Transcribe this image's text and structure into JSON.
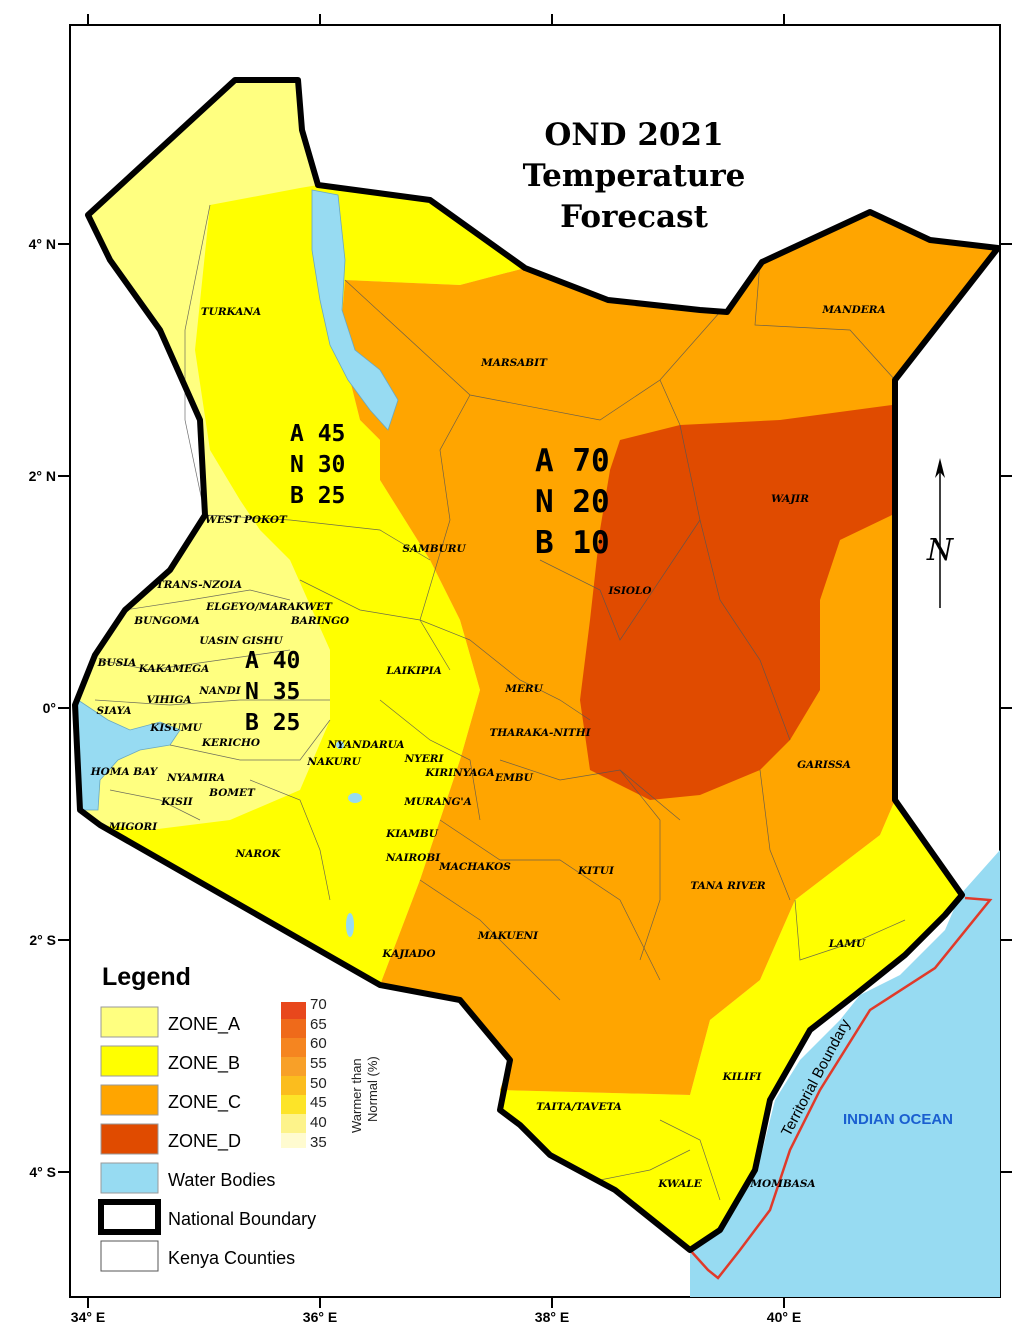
{
  "title": {
    "line1": "OND 2021",
    "line2": "Temperature",
    "line3": "Forecast"
  },
  "axes": {
    "x_ticks": [
      "34° E",
      "36° E",
      "38° E",
      "40° E"
    ],
    "y_ticks": [
      "4° N",
      "2° N",
      "0°",
      "2° S",
      "4° S"
    ]
  },
  "zone_stats": [
    {
      "a": "A 45",
      "n": "N 30",
      "b": "B 25"
    },
    {
      "a": "A 70",
      "n": "N 20",
      "b": "B 10"
    },
    {
      "a": "A 40",
      "n": "N 35",
      "b": "B 25"
    }
  ],
  "counties": [
    "TURKANA",
    "MARSABIT",
    "MANDERA",
    "WAJIR",
    "WEST POKOT",
    "SAMBURU",
    "ISIOLO",
    "TRANS-NZOIA",
    "ELGEYO/MARAKWET",
    "BUNGOMA",
    "BARINGO",
    "UASIN GISHU",
    "BUSIA",
    "KAKAMEGA",
    "LAIKIPIA",
    "NANDI",
    "VIHIGA",
    "MERU",
    "SIAYA",
    "KISUMU",
    "THARAKA-NITHI",
    "KERICHO",
    "NYANDARUA",
    "NYERI",
    "GARISSA",
    "HOMA BAY",
    "NAKURU",
    "KIRINYAGA",
    "EMBU",
    "NYAMIRA",
    "BOMET",
    "KISII",
    "MURANG'A",
    "MIGORI",
    "KIAMBU",
    "NAROK",
    "NAIROBI",
    "MACHAKOS",
    "KITUI",
    "TANA RIVER",
    "MAKUENI",
    "LAMU",
    "KAJIADO",
    "KILIFI",
    "TAITA/TAVETA",
    "KWALE",
    "MOMBASA"
  ],
  "legend": {
    "title": "Legend",
    "items": [
      {
        "label": "ZONE_A",
        "color": "#ffff80"
      },
      {
        "label": "ZONE_B",
        "color": "#ffff00"
      },
      {
        "label": "ZONE_C",
        "color": "#ffa500"
      },
      {
        "label": "ZONE_D",
        "color": "#e04b00"
      },
      {
        "label": "Water Bodies",
        "color": "#97dbf2"
      },
      {
        "label": "National Boundary",
        "color": "#000000"
      },
      {
        "label": "Kenya Counties",
        "color": "#ffffff"
      }
    ]
  },
  "scale": {
    "title_line1": "Warmer than",
    "title_line2": "Normal (%)",
    "labels": [
      "70",
      "65",
      "60",
      "55",
      "50",
      "45",
      "40",
      "35"
    ],
    "colors": [
      "#e8471c",
      "#ef6a1a",
      "#f58520",
      "#f8a028",
      "#fbbd1e",
      "#fde428",
      "#fdf38a",
      "#fffbd0"
    ]
  },
  "labels": {
    "ocean": "INDIAN OCEAN",
    "territorial_boundary": "Territorial Boundary",
    "north": "N"
  },
  "colors": {
    "zone_a": "#ffff80",
    "zone_b": "#ffff00",
    "zone_c": "#ffa500",
    "zone_d": "#e04b00",
    "water": "#97dbf2",
    "territorial_line": "#e03a2a"
  }
}
